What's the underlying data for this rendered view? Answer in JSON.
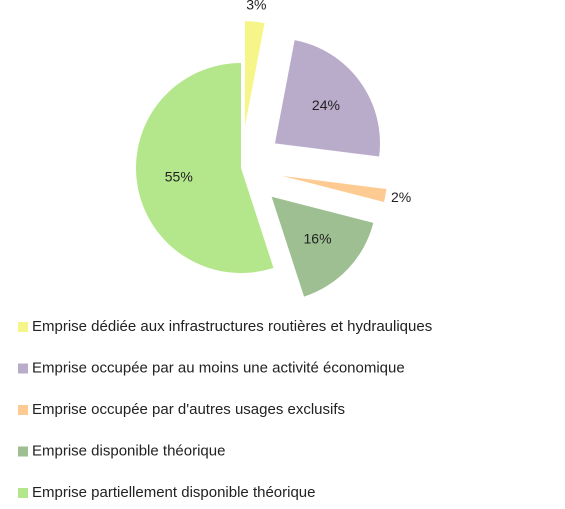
{
  "chart_data": {
    "type": "pie",
    "categories": [
      "Emprise dédiée aux infrastructures routières et hydrauliques",
      "Emprise occupée par au moins une activité économique",
      "Emprise occupée par d'autres usages exclusifs",
      "Emprise disponible théorique",
      "Emprise partiellement disponible théorique"
    ],
    "values": [
      3,
      24,
      2,
      16,
      55
    ],
    "value_labels": [
      "3%",
      "24%",
      "2%",
      "16%",
      "55%"
    ],
    "colors": [
      "#f6f58a",
      "#b9abca",
      "#fdca92",
      "#9dbf91",
      "#b4e78b"
    ],
    "legend": "bottom"
  }
}
